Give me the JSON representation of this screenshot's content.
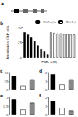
{
  "diagram": {
    "label": "a"
  },
  "chart_data": [
    {
      "title": "b",
      "type": "bar",
      "xlabel": "PGE₂ (nM)",
      "ylabel": "Percentage of CD4⁺ cells",
      "categories": [
        null,
        null,
        null,
        null,
        null,
        null,
        null,
        null,
        null,
        null,
        null,
        null,
        null,
        null,
        null,
        null
      ],
      "series": [
        {
          "name": "Ets1+/+",
          "color": "#000000",
          "values": [
            42,
            38,
            33,
            27,
            20,
            14,
            10,
            6,
            null,
            null,
            null,
            null,
            null,
            null,
            null,
            null
          ]
        },
        {
          "name": "Ets1-/-",
          "color": "#ffffff",
          "values": [
            null,
            null,
            null,
            null,
            null,
            null,
            null,
            null,
            42,
            41,
            40,
            40,
            39,
            39,
            38,
            38
          ]
        }
      ],
      "ylim": [
        0,
        50
      ],
      "yticks": [
        0,
        25,
        50
      ],
      "legend": "top",
      "tick_labels": "y"
    },
    {
      "title": "c",
      "type": "bar",
      "categories": [
        null,
        null,
        null
      ],
      "values": [
        40,
        12,
        30
      ],
      "colors": [
        "#000000",
        "#ffffff",
        "#888888"
      ],
      "ylim": [
        0,
        50
      ],
      "yticks": [
        0,
        25,
        50
      ],
      "tick_labels": "y"
    },
    {
      "title": "d",
      "type": "bar",
      "categories": [
        null,
        null,
        null
      ],
      "values": [
        1.8,
        0.6,
        1.2
      ],
      "colors": [
        "#000000",
        "#ffffff",
        "#888888"
      ],
      "ylim": [
        0,
        2
      ],
      "yticks": [
        0,
        1,
        2
      ],
      "tick_labels": "y"
    },
    {
      "title": "e",
      "type": "bar",
      "categories": [
        null,
        null,
        null
      ],
      "values": [
        0.9,
        0.3,
        0.7
      ],
      "colors": [
        "#000000",
        "#ffffff",
        "#888888"
      ],
      "ylim": [
        0,
        1
      ],
      "yticks": [
        0,
        0.5,
        1
      ],
      "tick_labels": "y"
    },
    {
      "title": "f",
      "type": "bar",
      "categories": [
        null,
        null,
        null
      ],
      "values": [
        1.6,
        0.8,
        0.5
      ],
      "colors": [
        "#000000",
        "#ffffff",
        "#888888"
      ],
      "ylim": [
        0,
        2
      ],
      "yticks": [
        0,
        1,
        2
      ],
      "tick_labels": "y"
    }
  ]
}
